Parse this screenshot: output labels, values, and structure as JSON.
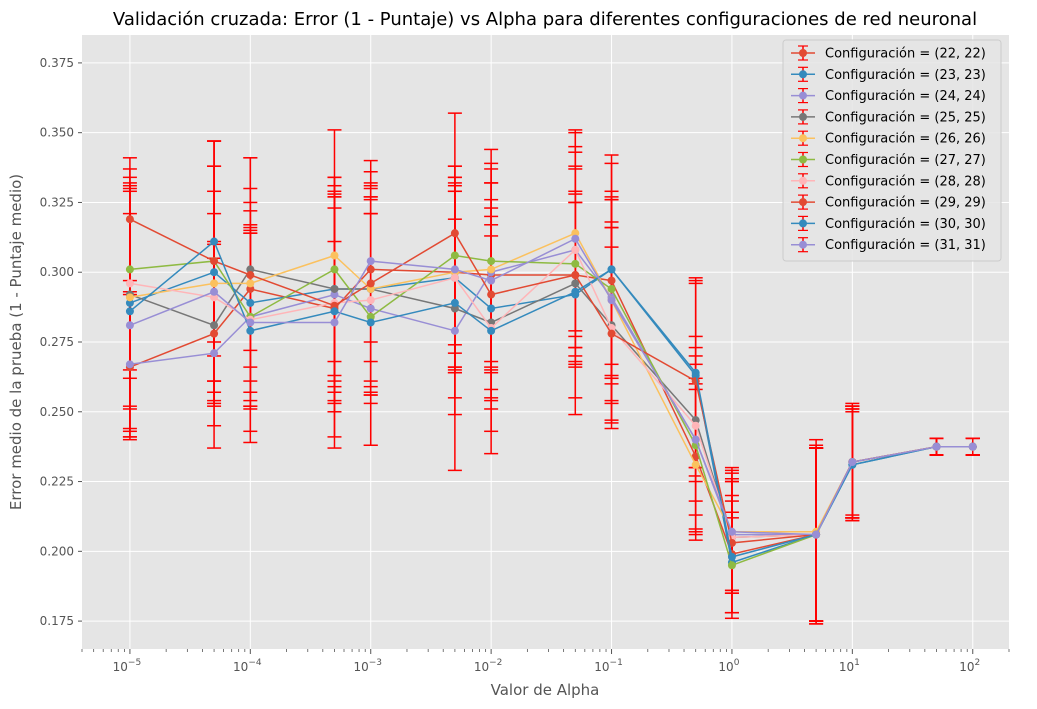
{
  "chart_data": {
    "type": "line",
    "title": "Validación cruzada: Error (1 - Puntaje) vs Alpha para diferentes configuraciones de red neuronal",
    "xlabel": "Valor de Alpha",
    "ylabel": "Error medio de la prueba (1 - Puntaje medio)",
    "xscale": "log",
    "xlim": [
      4e-06,
      200
    ],
    "ylim": [
      0.165,
      0.385
    ],
    "grid": true,
    "legend_position": "top-right",
    "error_bar_color": "#ff0000",
    "x": [
      1e-05,
      5e-05,
      0.0001,
      0.0005,
      0.001,
      0.005,
      0.01,
      0.05,
      0.1,
      0.5,
      1,
      5,
      10,
      50,
      100
    ],
    "y_ticks": [
      0.175,
      0.2,
      0.225,
      0.25,
      0.275,
      0.3,
      0.325,
      0.35,
      0.375
    ],
    "y_tick_labels": [
      "0.175",
      "0.200",
      "0.225",
      "0.250",
      "0.275",
      "0.300",
      "0.325",
      "0.350",
      "0.375"
    ],
    "x_ticks": [
      {
        "value": 1e-05,
        "label": "10",
        "exp": "−5"
      },
      {
        "value": 0.0001,
        "label": "10",
        "exp": "−4"
      },
      {
        "value": 0.001,
        "label": "10",
        "exp": "−3"
      },
      {
        "value": 0.01,
        "label": "10",
        "exp": "−2"
      },
      {
        "value": 0.1,
        "label": "10",
        "exp": "−1"
      },
      {
        "value": 1,
        "label": "10",
        "exp": "0"
      },
      {
        "value": 10,
        "label": "10",
        "exp": "1"
      },
      {
        "value": 100,
        "label": "10",
        "exp": "2"
      }
    ],
    "series": [
      {
        "name": "Configuración = (22, 22)",
        "color": "#e24a33",
        "values": [
          0.266,
          0.278,
          0.294,
          0.287,
          0.301,
          0.3,
          0.299,
          0.299,
          0.297,
          0.234,
          0.199,
          0.206,
          0.232,
          0.2375,
          0.2375
        ],
        "errors": [
          0.026,
          0.033,
          0.028,
          0.024,
          0.026,
          0.034,
          0.033,
          0.026,
          0.03,
          0.026,
          0.021,
          0.032,
          0.02,
          0.003,
          0.003
        ]
      },
      {
        "name": "Configuración = (23, 23)",
        "color": "#348abd",
        "values": [
          0.289,
          0.3,
          0.289,
          0.294,
          0.294,
          0.298,
          0.287,
          0.292,
          0.301,
          0.263,
          0.196,
          0.206,
          0.231,
          0.2375,
          0.2375
        ],
        "errors": [
          0.045,
          0.047,
          0.028,
          0.04,
          0.038,
          0.033,
          0.033,
          0.037,
          0.038,
          0.033,
          0.018,
          0.031,
          0.019,
          0.003,
          0.003
        ]
      },
      {
        "name": "Configuración = (24, 24)",
        "color": "#988ed5",
        "values": [
          0.267,
          0.271,
          0.284,
          0.292,
          0.287,
          0.279,
          0.3,
          0.308,
          0.291,
          0.24,
          0.206,
          0.206,
          0.232,
          0.2375,
          0.2375
        ],
        "errors": [
          0.026,
          0.034,
          0.03,
          0.035,
          0.034,
          0.05,
          0.032,
          0.035,
          0.038,
          0.022,
          0.02,
          0.031,
          0.021,
          0.003,
          0.003
        ]
      },
      {
        "name": "Configuración = (25, 25)",
        "color": "#777777",
        "values": [
          0.292,
          0.281,
          0.301,
          0.294,
          0.294,
          0.287,
          0.282,
          0.296,
          0.281,
          0.247,
          0.205,
          0.206,
          0.232,
          0.2375,
          0.2375
        ],
        "errors": [
          0.04,
          0.029,
          0.029,
          0.035,
          0.033,
          0.032,
          0.031,
          0.029,
          0.035,
          0.02,
          0.02,
          0.031,
          0.019,
          0.003,
          0.003
        ]
      },
      {
        "name": "Configuración = (26, 26)",
        "color": "#fbc15e",
        "values": [
          0.291,
          0.296,
          0.296,
          0.306,
          0.294,
          0.3,
          0.301,
          0.314,
          0.29,
          0.231,
          0.207,
          0.207,
          0.232,
          0.2375,
          0.2375
        ],
        "errors": [
          0.04,
          0.042,
          0.045,
          0.045,
          0.037,
          0.034,
          0.036,
          0.037,
          0.036,
          0.027,
          0.022,
          0.033,
          0.02,
          0.003,
          0.003
        ]
      },
      {
        "name": "Configuración = (27, 27)",
        "color": "#8eba42",
        "values": [
          0.301,
          0.304,
          0.284,
          0.301,
          0.284,
          0.306,
          0.304,
          0.303,
          0.294,
          0.238,
          0.195,
          0.206,
          0.232,
          0.2375,
          0.2375
        ],
        "errors": [
          0.036,
          0.034,
          0.032,
          0.033,
          0.046,
          0.032,
          0.04,
          0.035,
          0.032,
          0.032,
          0.017,
          0.031,
          0.02,
          0.003,
          0.003
        ]
      },
      {
        "name": "Configuración = (28, 28)",
        "color": "#ffb5b8",
        "values": [
          0.296,
          0.291,
          0.283,
          0.289,
          0.29,
          0.298,
          0.28,
          0.308,
          0.28,
          0.245,
          0.205,
          0.206,
          0.232,
          0.2375,
          0.2375
        ],
        "errors": [
          0.034,
          0.03,
          0.031,
          0.039,
          0.031,
          0.034,
          0.037,
          0.042,
          0.036,
          0.032,
          0.02,
          0.031,
          0.02,
          0.003,
          0.003
        ]
      },
      {
        "name": "Configuración = (29, 29)",
        "color": "#e24a33",
        "values": [
          0.319,
          0.304,
          0.299,
          0.288,
          0.296,
          0.314,
          0.292,
          0.299,
          0.278,
          0.261,
          0.203,
          0.206,
          0.232,
          0.2375,
          0.2375
        ],
        "errors": [
          0.022,
          0.043,
          0.042,
          0.035,
          0.04,
          0.043,
          0.034,
          0.029,
          0.031,
          0.036,
          0.027,
          0.031,
          0.02,
          0.003,
          0.003
        ]
      },
      {
        "name": "Configuración = (30, 30)",
        "color": "#348abd",
        "values": [
          0.286,
          0.311,
          0.279,
          0.286,
          0.282,
          0.289,
          0.279,
          0.293,
          0.301,
          0.264,
          0.198,
          0.206,
          0.231,
          0.2375,
          0.2375
        ],
        "errors": [
          0.043,
          0.036,
          0.036,
          0.045,
          0.044,
          0.04,
          0.044,
          0.044,
          0.041,
          0.034,
          0.02,
          0.031,
          0.02,
          0.003,
          0.003
        ]
      },
      {
        "name": "Configuración = (31, 31)",
        "color": "#988ed5",
        "values": [
          0.281,
          0.293,
          0.282,
          0.282,
          0.304,
          0.301,
          0.297,
          0.312,
          0.29,
          0.24,
          0.207,
          0.206,
          0.232,
          0.2375,
          0.2375
        ],
        "errors": [
          0.04,
          0.036,
          0.043,
          0.045,
          0.036,
          0.037,
          0.042,
          0.033,
          0.028,
          0.033,
          0.021,
          0.031,
          0.02,
          0.003,
          0.003
        ]
      }
    ]
  }
}
